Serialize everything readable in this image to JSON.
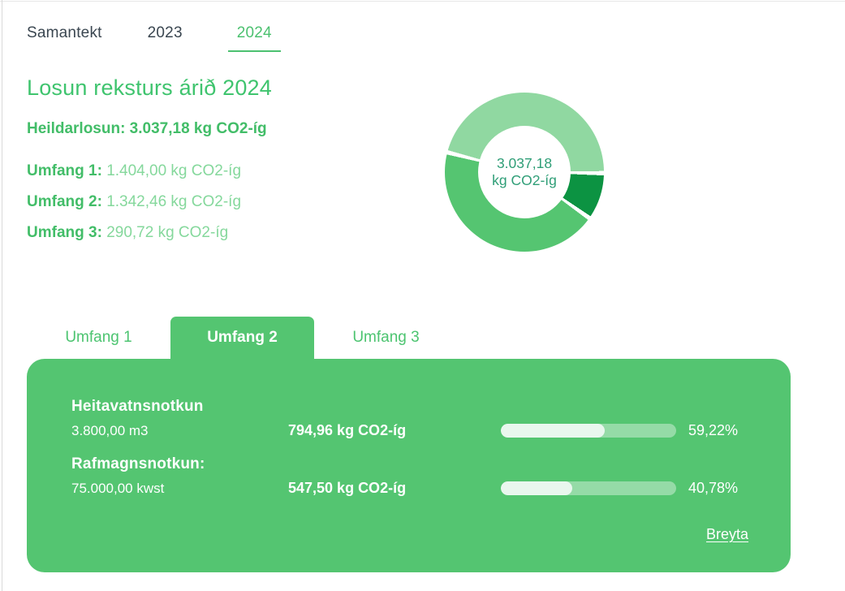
{
  "header": {
    "tabs": [
      {
        "label": "Samantekt",
        "active": false
      },
      {
        "label": "2023",
        "active": false
      },
      {
        "label": "2024",
        "active": true
      }
    ]
  },
  "summary": {
    "title": "Losun reksturs árið 2024",
    "total_line": "Heildarlosun: 3.037,18 kg CO2-íg",
    "scopes": [
      {
        "label": "Umfang 1:",
        "value": "1.404,00 kg CO2-íg"
      },
      {
        "label": "Umfang 2:",
        "value": "1.342,46 kg CO2-íg"
      },
      {
        "label": "Umfang 3:",
        "value": "290,72 kg CO2-íg"
      }
    ]
  },
  "chart_data": {
    "type": "pie",
    "subtype": "donut",
    "total": 3037.18,
    "center_label": [
      "3.037,18",
      "kg CO2-íg"
    ],
    "segments": [
      {
        "name": "Umfang 1",
        "value": 1404.0,
        "color": "#90d8a1"
      },
      {
        "name": "Umfang 2",
        "value": 1342.46,
        "color": "#55c571"
      },
      {
        "name": "Umfang 3",
        "value": 290.72,
        "color": "#0c9342"
      }
    ],
    "draw_order": [
      0,
      2,
      1
    ],
    "start_angle_deg": -74,
    "gap_deg": 3.2,
    "legend_position": "none"
  },
  "scope_tabs": [
    {
      "label": "Umfang 1",
      "active": false
    },
    {
      "label": "Umfang 2",
      "active": true
    },
    {
      "label": "Umfang 3",
      "active": false
    }
  ],
  "panel": {
    "rows": [
      {
        "title": "Heitavatnsnotkun",
        "amount": "3.800,00 m3",
        "emission": "794,96 kg CO2-íg",
        "percent": 59.22,
        "percent_label": "59,22%"
      },
      {
        "title": "Rafmagnsnotkun:",
        "amount": "75.000,00 kwst",
        "emission": "547,50 kg CO2-íg",
        "percent": 40.78,
        "percent_label": "40,78%"
      }
    ],
    "edit_label": "Breyta"
  },
  "colors": {
    "accent_green": "#54c571",
    "text_green": "#44c26c",
    "light_value_green": "#85d89c",
    "center_text": "#2f9e77",
    "segment_light": "#90d8a1",
    "segment_mid": "#55c571",
    "segment_dark": "#0c9342",
    "dark_text": "#3a4650"
  }
}
